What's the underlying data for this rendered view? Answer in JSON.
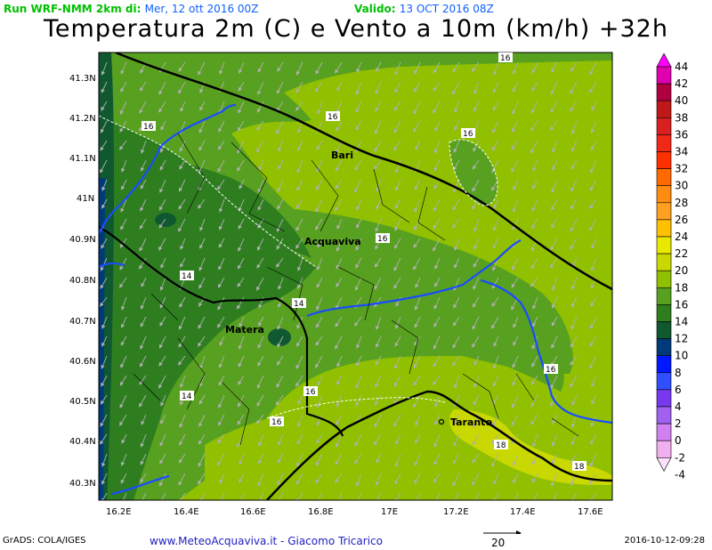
{
  "header": {
    "run_label": "Run WRF-NMM 2km di:",
    "run_date": "Mer, 12 ott 2016 00Z",
    "valid_label": "Valido:",
    "valid_date": "13 OCT 2016 08Z"
  },
  "title": "Temperatura 2m (C) e Vento a 10m (km/h) +32h",
  "axes": {
    "lat_ticks": [
      "41.3N",
      "41.2N",
      "41.1N",
      "41N",
      "40.9N",
      "40.8N",
      "40.7N",
      "40.6N",
      "40.5N",
      "40.4N",
      "40.3N"
    ],
    "lon_ticks": [
      "16.2E",
      "16.4E",
      "16.6E",
      "16.8E",
      "17E",
      "17.2E",
      "17.4E",
      "17.6E"
    ]
  },
  "cities": [
    {
      "name": "Bari"
    },
    {
      "name": "Acquaviva"
    },
    {
      "name": "Matera"
    },
    {
      "name": "Taranto"
    }
  ],
  "contour_labels": [
    "16",
    "16",
    "16",
    "16",
    "16",
    "16",
    "16",
    "16",
    "14",
    "14",
    "14",
    "18",
    "18"
  ],
  "legend": {
    "values": [
      "44",
      "42",
      "40",
      "38",
      "36",
      "34",
      "32",
      "30",
      "28",
      "26",
      "24",
      "22",
      "20",
      "18",
      "16",
      "14",
      "12",
      "10",
      "8",
      "6",
      "4",
      "2",
      "0",
      "-2",
      "-4"
    ],
    "colors": [
      "#ff00ff",
      "#e000b0",
      "#b00040",
      "#c01818",
      "#d82020",
      "#f02818",
      "#ff3000",
      "#ff6a00",
      "#ff8c10",
      "#ffa020",
      "#ffc000",
      "#e8e800",
      "#c8d800",
      "#90c000",
      "#58a020",
      "#2e7e20",
      "#105830",
      "#003a7a",
      "#0018ff",
      "#3050ff",
      "#7838f0",
      "#a060f0",
      "#d080f0",
      "#f0b0f0",
      "#ffe0ff"
    ]
  },
  "vector_ref": {
    "value": "20"
  },
  "footer": {
    "grads": "GrADS: COLA/IGES",
    "site": "www.MeteoAcquaviva.it - Giacomo Tricarico",
    "timestamp": "2016-10-12-09:28"
  }
}
